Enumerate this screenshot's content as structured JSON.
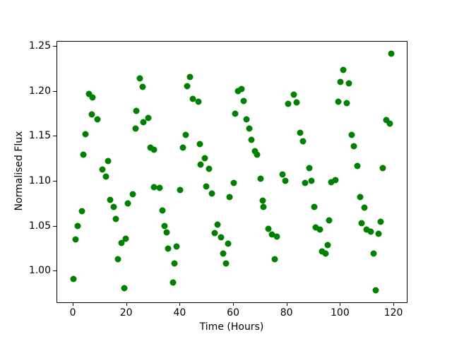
{
  "chart_data": {
    "type": "scatter",
    "title": "",
    "xlabel": "Time (Hours)",
    "ylabel": "Normalised Flux",
    "marker_color": "#008000",
    "marker_size_px": 9,
    "grid": false,
    "legend": null,
    "xlim": [
      -6.1,
      125.0
    ],
    "ylim": [
      0.9646,
      1.2557
    ],
    "xticks": [
      0,
      20,
      40,
      60,
      80,
      100,
      120
    ],
    "xtick_labels": [
      "0",
      "20",
      "40",
      "60",
      "80",
      "100",
      "120"
    ],
    "yticks": [
      1.0,
      1.05,
      1.1,
      1.15,
      1.2,
      1.25
    ],
    "ytick_labels": [
      "1.00",
      "1.05",
      "1.10",
      "1.15",
      "1.20",
      "1.25"
    ],
    "points": [
      [
        5.8,
        1.1973
      ],
      [
        7.1,
        1.1934
      ],
      [
        24.8,
        1.2146
      ],
      [
        25.9,
        1.2052
      ],
      [
        23.6,
        1.1785
      ],
      [
        26.2,
        1.1659
      ],
      [
        28.0,
        1.1706
      ],
      [
        6.9,
        1.1745
      ],
      [
        9.0,
        1.169
      ],
      [
        23.3,
        1.1588
      ],
      [
        4.5,
        1.1525
      ],
      [
        3.7,
        1.1297
      ],
      [
        13.0,
        1.1226
      ],
      [
        10.8,
        1.1132
      ],
      [
        12.2,
        1.1054
      ],
      [
        28.8,
        1.1376
      ],
      [
        30.1,
        1.1352
      ],
      [
        30.1,
        1.0936
      ],
      [
        32.3,
        1.0928
      ],
      [
        22.2,
        1.0857
      ],
      [
        13.7,
        1.0794
      ],
      [
        15.1,
        1.0715
      ],
      [
        20.4,
        1.0755
      ],
      [
        3.2,
        1.0668
      ],
      [
        33.3,
        1.0676
      ],
      [
        1.5,
        1.0503
      ],
      [
        0.8,
        1.0354
      ],
      [
        0.0,
        0.9914
      ],
      [
        15.9,
        1.0582
      ],
      [
        18.0,
        1.0315
      ],
      [
        19.6,
        1.0362
      ],
      [
        16.7,
        1.0134
      ],
      [
        19.0,
        0.9812
      ],
      [
        34.1,
        1.0503
      ],
      [
        34.9,
        1.0432
      ],
      [
        35.4,
        1.0252
      ],
      [
        38.6,
        1.0275
      ],
      [
        37.8,
        1.0086
      ],
      [
        37.3,
        0.9875
      ],
      [
        43.6,
        1.2166
      ],
      [
        42.6,
        1.206
      ],
      [
        44.7,
        1.1918
      ],
      [
        46.8,
        1.1887
      ],
      [
        61.6,
        1.2005
      ],
      [
        62.9,
        1.2028
      ],
      [
        63.7,
        1.1895
      ],
      [
        60.5,
        1.1753
      ],
      [
        64.8,
        1.169
      ],
      [
        65.8,
        1.1588
      ],
      [
        66.6,
        1.1466
      ],
      [
        42.0,
        1.1518
      ],
      [
        41.0,
        1.1376
      ],
      [
        47.3,
        1.1415
      ],
      [
        49.2,
        1.1258
      ],
      [
        47.6,
        1.1187
      ],
      [
        50.8,
        1.114
      ],
      [
        67.9,
        1.1337
      ],
      [
        68.7,
        1.1297
      ],
      [
        70.0,
        1.103
      ],
      [
        78.2,
        1.1077
      ],
      [
        79.3,
        1.1007
      ],
      [
        60.0,
        1.0983
      ],
      [
        49.7,
        1.0943
      ],
      [
        51.8,
        1.0865
      ],
      [
        58.4,
        1.0826
      ],
      [
        39.9,
        1.0904
      ],
      [
        70.8,
        1.0786
      ],
      [
        71.1,
        1.0715
      ],
      [
        119.0,
        1.2421
      ],
      [
        101.0,
        1.2241
      ],
      [
        99.9,
        1.2107
      ],
      [
        103.1,
        1.2091
      ],
      [
        82.5,
        1.1966
      ],
      [
        80.4,
        1.1863
      ],
      [
        83.5,
        1.1879
      ],
      [
        99.1,
        1.1887
      ],
      [
        102.3,
        1.1871
      ],
      [
        117.0,
        1.1686
      ],
      [
        118.3,
        1.1643
      ],
      [
        84.9,
        1.1541
      ],
      [
        85.9,
        1.1447
      ],
      [
        104.1,
        1.1518
      ],
      [
        104.9,
        1.1392
      ],
      [
        106.3,
        1.1171
      ],
      [
        115.8,
        1.1148
      ],
      [
        88.3,
        1.1148
      ],
      [
        86.7,
        1.0983
      ],
      [
        89.1,
        1.1007
      ],
      [
        96.5,
        1.0991
      ],
      [
        98.1,
        1.1014
      ],
      [
        107.3,
        1.0826
      ],
      [
        90.1,
        1.0715
      ],
      [
        108.9,
        1.0707
      ],
      [
        53.9,
        1.0519
      ],
      [
        52.9,
        1.0425
      ],
      [
        55.2,
        1.0377
      ],
      [
        57.9,
        1.0307
      ],
      [
        56.0,
        1.0196
      ],
      [
        57.1,
        1.0086
      ],
      [
        73.0,
        1.0476
      ],
      [
        74.3,
        1.0409
      ],
      [
        76.1,
        1.0385
      ],
      [
        75.3,
        1.0134
      ],
      [
        95.7,
        1.0566
      ],
      [
        90.7,
        1.0487
      ],
      [
        92.3,
        1.0464
      ],
      [
        95.2,
        1.0291
      ],
      [
        93.1,
        1.022
      ],
      [
        94.4,
        1.0196
      ],
      [
        107.9,
        1.0535
      ],
      [
        115.0,
        1.055
      ],
      [
        109.7,
        1.0464
      ],
      [
        111.3,
        1.044
      ],
      [
        114.2,
        1.0417
      ],
      [
        112.3,
        1.0196
      ],
      [
        113.1,
        0.9788
      ]
    ]
  }
}
